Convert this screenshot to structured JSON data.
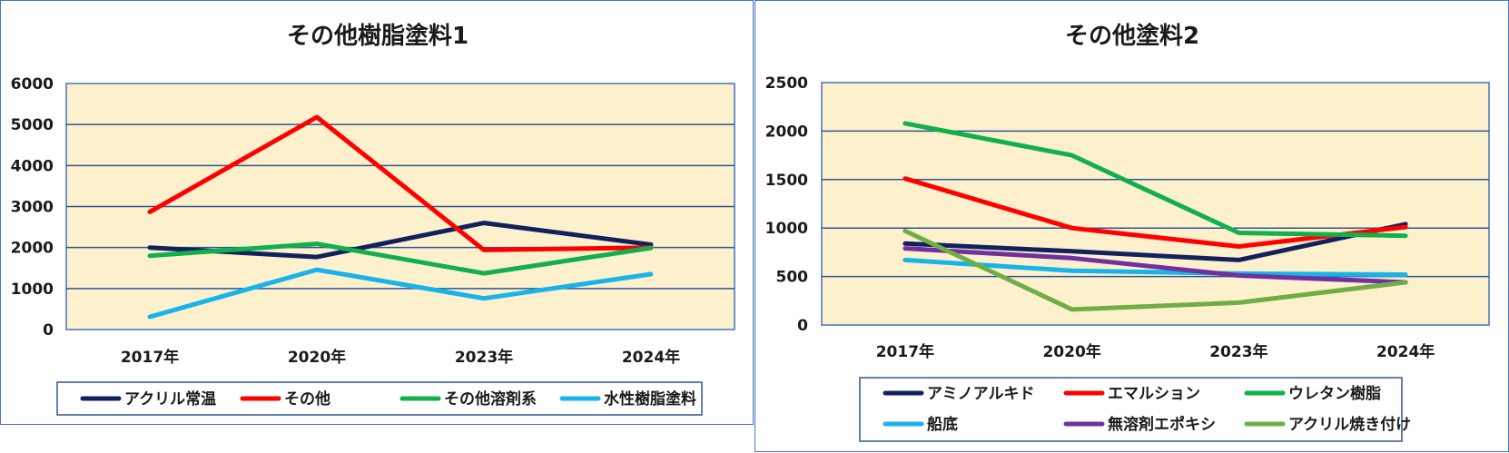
{
  "chart_data": [
    {
      "type": "line",
      "title": "その他樹脂塗料1",
      "categories": [
        "2017年",
        "2020年",
        "2023年",
        "2024年"
      ],
      "ylim": [
        0,
        6000
      ],
      "yticks": [
        0,
        1000,
        2000,
        3000,
        4000,
        5000,
        6000
      ],
      "grid": true,
      "legend_position": "bottom",
      "plot_background": "#fdf0cc",
      "series": [
        {
          "name": "アクリル常温",
          "color": "#12215e",
          "values": [
            2000,
            1770,
            2600,
            2070
          ]
        },
        {
          "name": "その他",
          "color": "#ff0000",
          "values": [
            2870,
            5180,
            1940,
            2000
          ]
        },
        {
          "name": "その他溶剤系",
          "color": "#11b04c",
          "values": [
            1800,
            2090,
            1370,
            1990
          ]
        },
        {
          "name": "水性樹脂塗料",
          "color": "#16b4ea",
          "values": [
            310,
            1460,
            760,
            1350
          ]
        }
      ]
    },
    {
      "type": "line",
      "title": "その他塗料2",
      "categories": [
        "2017年",
        "2020年",
        "2023年",
        "2024年"
      ],
      "ylim": [
        0,
        2500
      ],
      "yticks": [
        0,
        500,
        1000,
        1500,
        2000,
        2500
      ],
      "grid": true,
      "legend_position": "bottom",
      "plot_background": "#fdf0cc",
      "series": [
        {
          "name": "アミノアルキド",
          "color": "#12215e",
          "values": [
            840,
            760,
            670,
            1040
          ]
        },
        {
          "name": "エマルション",
          "color": "#ff0000",
          "values": [
            1510,
            1000,
            810,
            1010
          ]
        },
        {
          "name": "ウレタン樹脂",
          "color": "#11b04c",
          "values": [
            2080,
            1750,
            950,
            920
          ]
        },
        {
          "name": "船底",
          "color": "#16b4ea",
          "values": [
            670,
            560,
            530,
            520
          ]
        },
        {
          "name": "無溶剤エポキシ",
          "color": "#7030a0",
          "values": [
            790,
            690,
            510,
            440
          ]
        },
        {
          "name": "アクリル焼き付け",
          "color": "#70ad47",
          "values": [
            970,
            160,
            230,
            440
          ]
        }
      ]
    }
  ]
}
